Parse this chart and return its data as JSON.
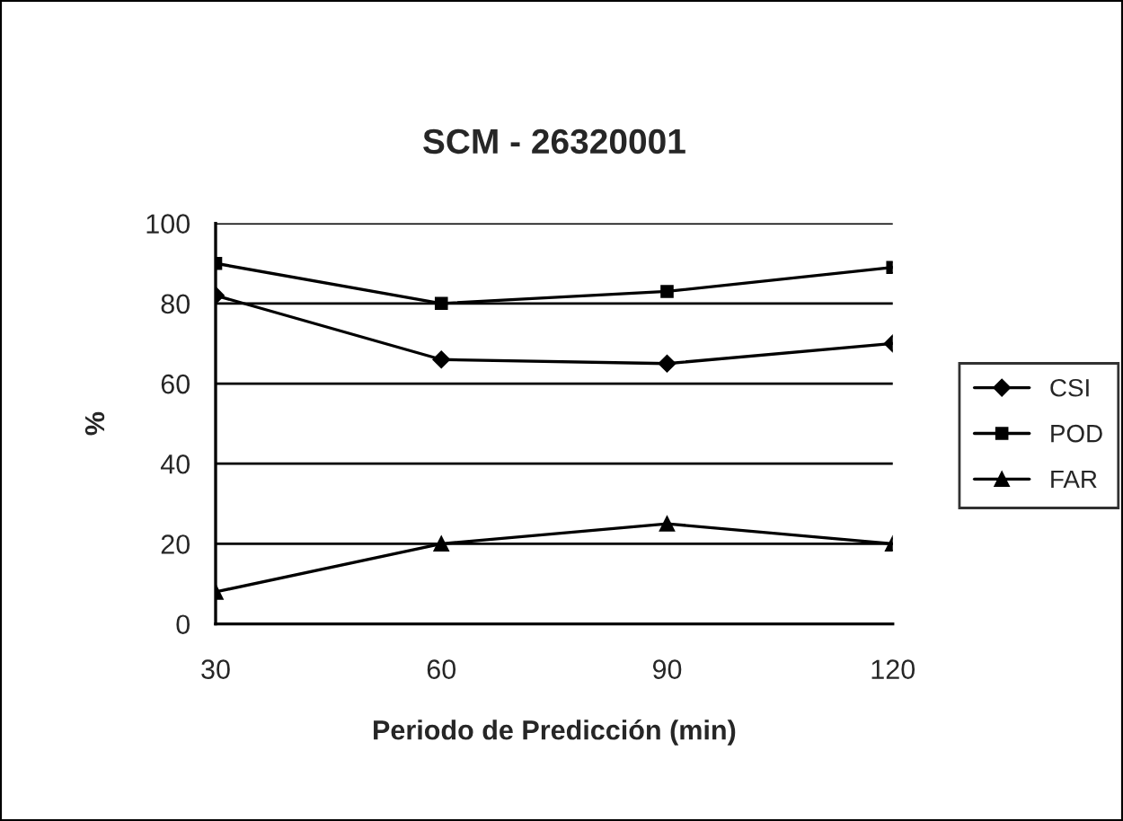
{
  "chart_data": {
    "type": "line",
    "title": "SCM - 26320001",
    "xlabel": "Periodo de Predicción (min)",
    "ylabel": "%",
    "x": [
      30,
      60,
      90,
      120
    ],
    "series": [
      {
        "name": "CSI",
        "color": "#000000",
        "marker": "diamond",
        "values": [
          82,
          66,
          65,
          70
        ]
      },
      {
        "name": "POD",
        "color": "#000000",
        "marker": "square",
        "values": [
          90,
          80,
          83,
          89
        ]
      },
      {
        "name": "FAR",
        "color": "#000000",
        "marker": "triangle",
        "values": [
          8,
          20,
          25,
          20
        ]
      }
    ],
    "xlim": [
      30,
      120
    ],
    "xticks": [
      30,
      60,
      90,
      120
    ],
    "ylim": [
      0,
      100
    ],
    "yticks": [
      0,
      20,
      40,
      60,
      80,
      100
    ],
    "grid": "y",
    "legend": "right",
    "line_style": "solid"
  }
}
